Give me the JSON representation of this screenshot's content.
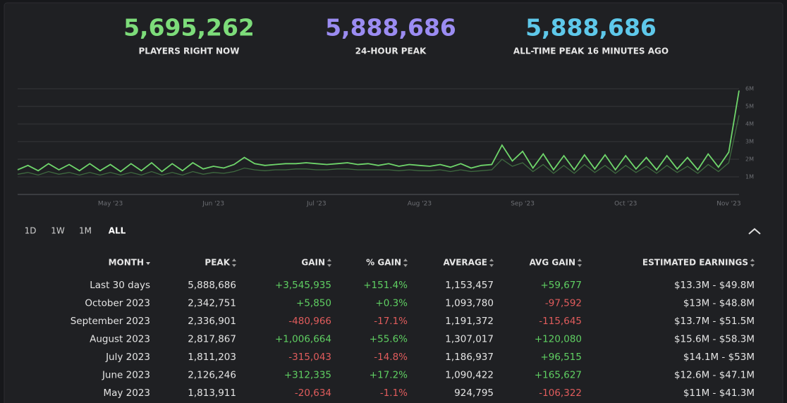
{
  "stats": [
    {
      "value": "5,695,262",
      "label": "PLAYERS RIGHT NOW",
      "color": "#7ddc7a"
    },
    {
      "value": "5,888,686",
      "label": "24-HOUR PEAK",
      "color": "#9b8cf2"
    },
    {
      "value": "5,888,686",
      "label": "ALL-TIME PEAK 16 MINUTES AGO",
      "color": "#5ec8ea"
    }
  ],
  "chart": {
    "type": "line",
    "categories": [
      null,
      null,
      null,
      null,
      null,
      null,
      null,
      null,
      null,
      "May '23",
      null,
      null,
      null,
      null,
      null,
      null,
      null,
      null,
      null,
      "Jun '23",
      null,
      null,
      null,
      null,
      null,
      null,
      null,
      null,
      null,
      "Jul '23",
      null,
      null,
      null,
      null,
      null,
      null,
      null,
      null,
      null,
      "Aug '23",
      null,
      null,
      null,
      null,
      null,
      null,
      null,
      null,
      null,
      "Sep '23",
      null,
      null,
      null,
      null,
      null,
      null,
      null,
      null,
      null,
      "Oct '23",
      null,
      null,
      null,
      null,
      null,
      null,
      null,
      null,
      null,
      "Nov '23",
      null
    ],
    "series": [
      {
        "color": "#6fd66b",
        "values": [
          1400000,
          1650000,
          1350000,
          1750000,
          1400000,
          1700000,
          1350000,
          1750000,
          1350000,
          1700000,
          1300000,
          1750000,
          1350000,
          1800000,
          1300000,
          1750000,
          1350000,
          1800000,
          1450000,
          1600000,
          1500000,
          1700000,
          2100000,
          1750000,
          1650000,
          1700000,
          1750000,
          1750000,
          1800000,
          1750000,
          1700000,
          1750000,
          1800000,
          1700000,
          1750000,
          1650000,
          1750000,
          1600000,
          1700000,
          1650000,
          1600000,
          1700000,
          1550000,
          1750000,
          1500000,
          1650000,
          1700000,
          2800000,
          1900000,
          2450000,
          1500000,
          2300000,
          1400000,
          2200000,
          1400000,
          2250000,
          1450000,
          2250000,
          1400000,
          2200000,
          1450000,
          2100000,
          1400000,
          2200000,
          1450000,
          2100000,
          1400000,
          2300000,
          1550000,
          2400000,
          5900000
        ]
      },
      {
        "color": "#3f6a40",
        "values": [
          1150000,
          1250000,
          1100000,
          1300000,
          1150000,
          1250000,
          1100000,
          1250000,
          1100000,
          1250000,
          1100000,
          1250000,
          1100000,
          1300000,
          1100000,
          1250000,
          1100000,
          1300000,
          1150000,
          1250000,
          1200000,
          1300000,
          1500000,
          1400000,
          1350000,
          1400000,
          1400000,
          1450000,
          1450000,
          1400000,
          1400000,
          1450000,
          1450000,
          1400000,
          1400000,
          1400000,
          1400000,
          1350000,
          1400000,
          1350000,
          1350000,
          1400000,
          1300000,
          1400000,
          1300000,
          1350000,
          1400000,
          2000000,
          1600000,
          1800000,
          1300000,
          1700000,
          1200000,
          1650000,
          1200000,
          1700000,
          1250000,
          1650000,
          1200000,
          1650000,
          1250000,
          1600000,
          1200000,
          1650000,
          1250000,
          1600000,
          1200000,
          1700000,
          1300000,
          1800000,
          4500000
        ]
      }
    ],
    "ylim": [
      0,
      6000000
    ],
    "yticks": [
      {
        "value": 1000000,
        "label": "1M"
      },
      {
        "value": 2000000,
        "label": "2M"
      },
      {
        "value": 3000000,
        "label": "3M"
      },
      {
        "value": 4000000,
        "label": "4M"
      },
      {
        "value": 5000000,
        "label": "5M"
      },
      {
        "value": 6000000,
        "label": "6M"
      }
    ],
    "grid": true
  },
  "ranges": [
    "1D",
    "1W",
    "1M",
    "ALL"
  ],
  "active_range": 3,
  "table": {
    "headers": [
      "MONTH",
      "PEAK",
      "GAIN",
      "% GAIN",
      "AVERAGE",
      "AVG GAIN",
      "ESTIMATED EARNINGS"
    ],
    "rows": [
      [
        "Last 30 days",
        "5,888,686",
        "+3,545,935",
        "+151.4%",
        "1,153,457",
        "+59,677",
        "$13.3M - $49.8M"
      ],
      [
        "October 2023",
        "2,342,751",
        "+5,850",
        "+0.3%",
        "1,093,780",
        "-97,592",
        "$13M - $48.8M"
      ],
      [
        "September 2023",
        "2,336,901",
        "-480,966",
        "-17.1%",
        "1,191,372",
        "-115,645",
        "$13.7M - $51.5M"
      ],
      [
        "August 2023",
        "2,817,867",
        "+1,006,664",
        "+55.6%",
        "1,307,017",
        "+120,080",
        "$15.6M - $58.3M"
      ],
      [
        "July 2023",
        "1,811,203",
        "-315,043",
        "-14.8%",
        "1,186,937",
        "+96,515",
        "$14.1M - $53M"
      ],
      [
        "June 2023",
        "2,126,246",
        "+312,335",
        "+17.2%",
        "1,090,422",
        "+165,627",
        "$12.6M - $47.1M"
      ],
      [
        "May 2023",
        "1,813,911",
        "-20,634",
        "-1.1%",
        "924,795",
        "-106,322",
        "$11M - $41.3M"
      ]
    ]
  }
}
